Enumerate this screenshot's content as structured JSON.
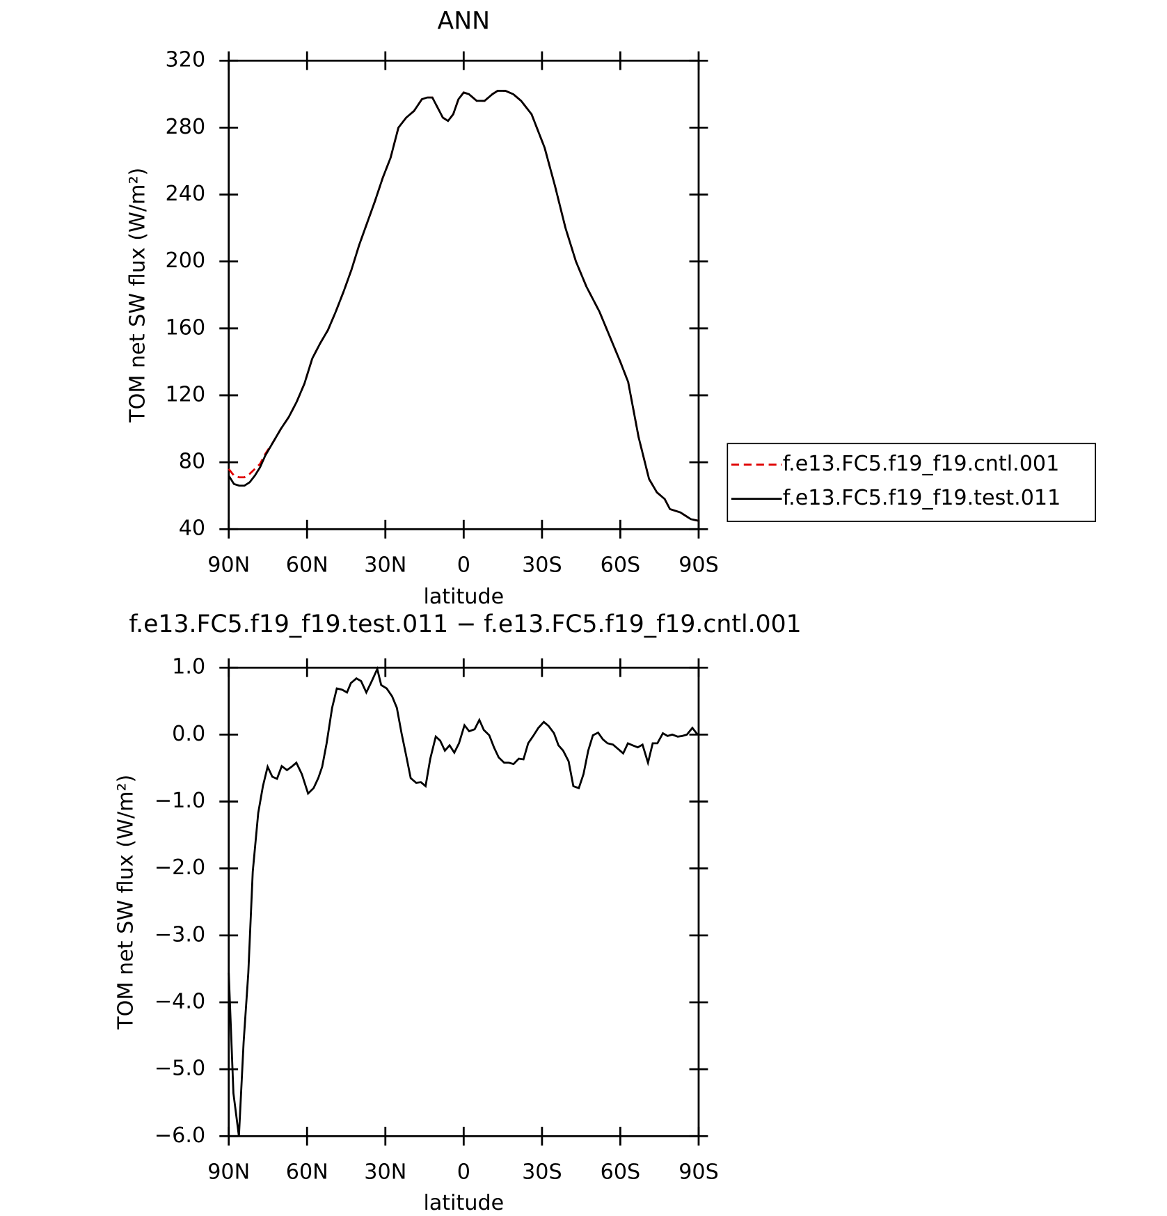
{
  "chart_data": [
    {
      "type": "line",
      "title": "ANN",
      "xlabel": "latitude",
      "ylabel": "TOM net SW flux (W/m²)",
      "x": [
        90,
        88,
        86,
        84,
        82,
        80,
        78,
        76,
        73,
        70,
        67,
        64,
        61,
        58,
        55,
        52,
        49,
        46,
        43,
        40,
        37,
        34,
        31,
        28,
        25,
        22,
        19,
        16,
        14,
        12,
        10,
        8,
        6,
        4,
        2,
        0,
        -2,
        -5,
        -8,
        -11,
        -13,
        -16,
        -19,
        -22,
        -26,
        -31,
        -35,
        -39,
        -43,
        -47,
        -52,
        -56,
        -60,
        -63,
        -67,
        -71,
        -74,
        -77,
        -79,
        -83,
        -87,
        -90
      ],
      "series": [
        {
          "name": "f.e13.FC5.f19_f19.cntl.001",
          "color": "#e00000",
          "style": "dashed",
          "values": [
            76,
            72,
            71,
            71,
            73,
            76,
            79,
            85,
            92,
            100,
            107,
            116,
            127,
            142,
            151,
            159,
            170,
            182,
            195,
            210,
            223,
            236,
            250,
            262,
            280,
            286,
            290,
            297,
            298,
            298,
            292,
            286,
            284,
            288,
            297,
            301,
            300,
            296,
            296,
            300,
            302,
            302,
            300,
            296,
            288,
            268,
            245,
            220,
            200,
            185,
            170,
            155,
            140,
            128,
            95,
            70,
            62,
            58,
            52,
            50,
            46,
            45
          ]
        },
        {
          "name": "f.e13.FC5.f19_f19.test.011",
          "color": "#000000",
          "style": "solid",
          "values": [
            72,
            67,
            66,
            66,
            68,
            72,
            77,
            84,
            92,
            100,
            107,
            116,
            127,
            142,
            151,
            159,
            170,
            182,
            195,
            210,
            223,
            236,
            250,
            262,
            280,
            286,
            290,
            297,
            298,
            298,
            292,
            286,
            284,
            288,
            297,
            301,
            300,
            296,
            296,
            300,
            302,
            302,
            300,
            296,
            288,
            268,
            245,
            220,
            200,
            185,
            170,
            155,
            140,
            128,
            95,
            70,
            62,
            58,
            52,
            50,
            46,
            45
          ]
        }
      ],
      "xlim": [
        90,
        -90
      ],
      "xticks": [
        {
          "value": 90,
          "label": "90N"
        },
        {
          "value": 60,
          "label": "60N"
        },
        {
          "value": 30,
          "label": "30N"
        },
        0,
        {
          "value": -30,
          "label": "30S"
        },
        {
          "value": -60,
          "label": "60S"
        },
        {
          "value": -90,
          "label": "90S"
        }
      ],
      "ylim": [
        40,
        320
      ],
      "yticks": [
        40,
        80,
        120,
        160,
        200,
        240,
        280,
        320
      ],
      "legend": "right"
    },
    {
      "type": "line",
      "title": "f.e13.FC5.f19_f19.test.011 − f.e13.FC5.f19_f19.cntl.001",
      "xlabel": "latitude",
      "ylabel": "TOM net SW flux (W/m²)",
      "x": [
        90,
        88.2,
        86.1,
        84.3,
        82.5,
        80.8,
        78.7,
        76.9,
        75.1,
        73.3,
        71.5,
        69.7,
        67.7,
        65.9,
        64.1,
        62,
        59.6,
        57.5,
        55.7,
        54.2,
        52.5,
        50.4,
        48.6,
        46.5,
        44.7,
        43.2,
        41.1,
        39.3,
        37.3,
        35.2,
        33.1,
        31.6,
        29.5,
        27.4,
        25.6,
        23.8,
        22.1,
        20.3,
        18.2,
        16.4,
        14.6,
        12.8,
        10.7,
        9,
        7.2,
        5.4,
        3.6,
        1.8,
        -0.3,
        -2.1,
        -4.2,
        -6,
        -7.7,
        -9.8,
        -11.6,
        -13.4,
        -15.5,
        -17.3,
        -19.1,
        -21.1,
        -22.9,
        -24.7,
        -26.8,
        -28.6,
        -30.7,
        -32.5,
        -34.6,
        -36.3,
        -38.1,
        -40.2,
        -42,
        -44.1,
        -45.9,
        -47.7,
        -49.5,
        -51.5,
        -53.3,
        -55.1,
        -57.2,
        -59,
        -61.1,
        -62.9,
        -64.7,
        -66.7,
        -68.5,
        -70.6,
        -72.4,
        -74.2,
        -76.3,
        -78.1,
        -79.9,
        -82,
        -83.7,
        -85.5,
        -87.6,
        -89.4
      ],
      "series": [
        {
          "color": "#000000",
          "style": "solid",
          "values": [
            -3.56,
            -5.36,
            -6.0,
            -4.6,
            -3.56,
            -2.05,
            -1.17,
            -0.77,
            -0.48,
            -0.63,
            -0.66,
            -0.47,
            -0.53,
            -0.48,
            -0.42,
            -0.59,
            -0.88,
            -0.8,
            -0.65,
            -0.48,
            -0.13,
            0.4,
            0.69,
            0.67,
            0.63,
            0.77,
            0.84,
            0.8,
            0.63,
            0.8,
            0.98,
            0.74,
            0.69,
            0.57,
            0.4,
            0.02,
            -0.3,
            -0.65,
            -0.72,
            -0.71,
            -0.77,
            -0.36,
            -0.03,
            -0.09,
            -0.24,
            -0.16,
            -0.27,
            -0.13,
            0.14,
            0.05,
            0.08,
            0.22,
            0.07,
            -0.01,
            -0.19,
            -0.34,
            -0.42,
            -0.42,
            -0.44,
            -0.36,
            -0.37,
            -0.13,
            -0.01,
            0.1,
            0.19,
            0.13,
            0.02,
            -0.16,
            -0.24,
            -0.4,
            -0.77,
            -0.8,
            -0.59,
            -0.24,
            -0.01,
            0.03,
            -0.07,
            -0.13,
            -0.15,
            -0.21,
            -0.28,
            -0.13,
            -0.16,
            -0.19,
            -0.15,
            -0.42,
            -0.13,
            -0.13,
            0.02,
            -0.02,
            0,
            -0.03,
            -0.02,
            0,
            0.1,
            0.01
          ]
        }
      ],
      "xlim": [
        90,
        -90
      ],
      "xticks": [
        {
          "value": 90,
          "label": "90N"
        },
        {
          "value": 60,
          "label": "60N"
        },
        {
          "value": 30,
          "label": "30N"
        },
        0,
        {
          "value": -30,
          "label": "30S"
        },
        {
          "value": -60,
          "label": "60S"
        },
        {
          "value": -90,
          "label": "90S"
        }
      ],
      "ylim": [
        -6,
        1
      ],
      "yticks": [
        {
          "value": -6,
          "label": "−6.0"
        },
        {
          "value": -5,
          "label": "−5.0"
        },
        {
          "value": -4,
          "label": "−4.0"
        },
        {
          "value": -3,
          "label": "−3.0"
        },
        {
          "value": -2,
          "label": "−2.0"
        },
        {
          "value": -1,
          "label": "−1.0"
        },
        {
          "value": 0,
          "label": "0.0"
        },
        {
          "value": 1,
          "label": "1.0"
        }
      ]
    }
  ]
}
